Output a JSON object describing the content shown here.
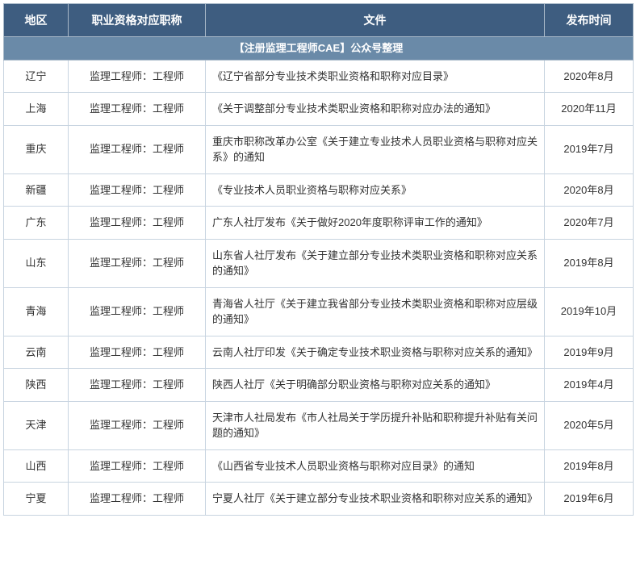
{
  "header": {
    "region": "地区",
    "qualification": "职业资格对应职称",
    "document": "文件",
    "date": "发布时间"
  },
  "banner": "【注册监理工程师CAE】公众号整理",
  "colors": {
    "header_bg": "#3e5d80",
    "header_fg": "#ffffff",
    "banner_bg": "#6a8aa8",
    "banner_fg": "#ffffff",
    "border": "#c8d4e0",
    "cell_bg": "#ffffff",
    "text": "#333333"
  },
  "rows": [
    {
      "region": "辽宁",
      "qual": "监理工程师：工程师",
      "doc": "《辽宁省部分专业技术类职业资格和职称对应目录》",
      "date": "2020年8月"
    },
    {
      "region": "上海",
      "qual": "监理工程师：工程师",
      "doc": "《关于调整部分专业技术类职业资格和职称对应办法的通知》",
      "date": "2020年11月"
    },
    {
      "region": "重庆",
      "qual": "监理工程师：工程师",
      "doc": "重庆市职称改革办公室《关于建立专业技术人员职业资格与职称对应关系》的通知",
      "date": "2019年7月"
    },
    {
      "region": "新疆",
      "qual": "监理工程师：工程师",
      "doc": "《专业技术人员职业资格与职称对应关系》",
      "date": "2020年8月"
    },
    {
      "region": "广东",
      "qual": "监理工程师：工程师",
      "doc": "广东人社厅发布《关于做好2020年度职称评审工作的通知》",
      "date": "2020年7月"
    },
    {
      "region": "山东",
      "qual": "监理工程师：工程师",
      "doc": "山东省人社厅发布《关于建立部分专业技术类职业资格和职称对应关系的通知》",
      "date": "2019年8月"
    },
    {
      "region": "青海",
      "qual": "监理工程师：工程师",
      "doc": "青海省人社厅《关于建立我省部分专业技术类职业资格和职称对应层级的通知》",
      "date": "2019年10月"
    },
    {
      "region": "云南",
      "qual": "监理工程师：工程师",
      "doc": "云南人社厅印发《关于确定专业技术职业资格与职称对应关系的通知》",
      "date": "2019年9月"
    },
    {
      "region": "陕西",
      "qual": "监理工程师：工程师",
      "doc": "陕西人社厅《关于明确部分职业资格与职称对应关系的通知》",
      "date": "2019年4月"
    },
    {
      "region": "天津",
      "qual": "监理工程师：工程师",
      "doc": "天津市人社局发布《市人社局关于学历提升补贴和职称提升补贴有关问题的通知》",
      "date": "2020年5月"
    },
    {
      "region": "山西",
      "qual": "监理工程师：工程师",
      "doc": "《山西省专业技术人员职业资格与职称对应目录》的通知",
      "date": "2019年8月"
    },
    {
      "region": "宁夏",
      "qual": "监理工程师：工程师",
      "doc": "宁夏人社厅《关于建立部分专业技术职业资格和职称对应关系的通知》",
      "date": "2019年6月"
    }
  ]
}
